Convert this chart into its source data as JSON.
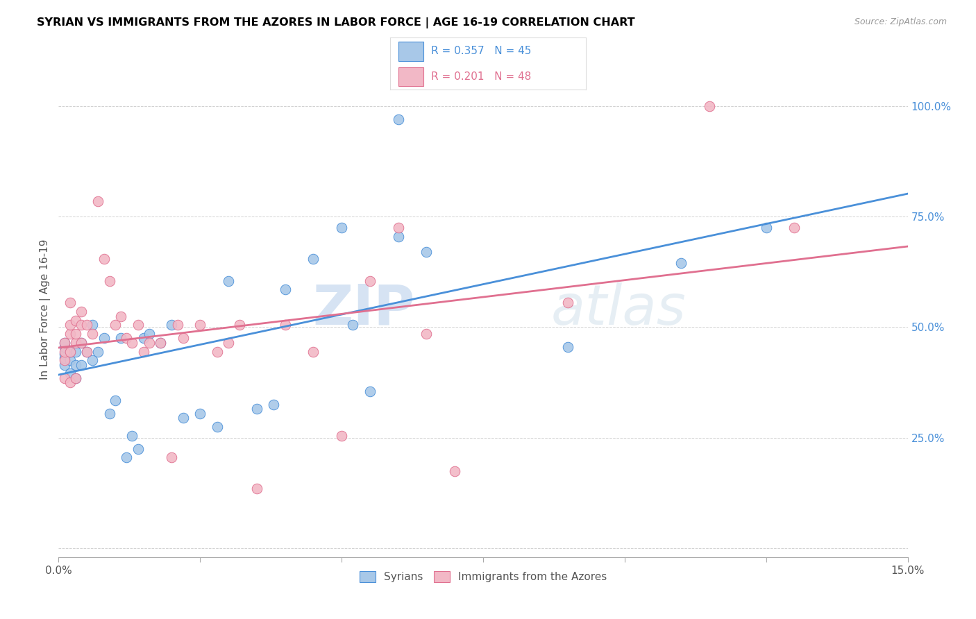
{
  "title": "SYRIAN VS IMMIGRANTS FROM THE AZORES IN LABOR FORCE | AGE 16-19 CORRELATION CHART",
  "source": "Source: ZipAtlas.com",
  "ylabel": "In Labor Force | Age 16-19",
  "xlim": [
    0.0,
    0.15
  ],
  "ylim": [
    -0.02,
    1.1
  ],
  "yticks": [
    0.0,
    0.25,
    0.5,
    0.75,
    1.0
  ],
  "ytick_labels": [
    "",
    "25.0%",
    "50.0%",
    "75.0%",
    "100.0%"
  ],
  "blue_R": 0.357,
  "blue_N": 45,
  "pink_R": 0.201,
  "pink_N": 48,
  "blue_color": "#A8C8E8",
  "pink_color": "#F2B8C6",
  "blue_line_color": "#4A90D9",
  "pink_line_color": "#E07090",
  "legend_label_blue": "Syrians",
  "legend_label_pink": "Immigrants from the Azores",
  "watermark_zip": "ZIP",
  "watermark_atlas": "atlas",
  "blue_scatter_x": [
    0.001,
    0.001,
    0.001,
    0.001,
    0.001,
    0.002,
    0.002,
    0.002,
    0.003,
    0.003,
    0.003,
    0.004,
    0.004,
    0.005,
    0.006,
    0.006,
    0.007,
    0.008,
    0.009,
    0.01,
    0.011,
    0.012,
    0.013,
    0.014,
    0.015,
    0.016,
    0.018,
    0.02,
    0.022,
    0.025,
    0.028,
    0.03,
    0.035,
    0.038,
    0.04,
    0.045,
    0.05,
    0.052,
    0.055,
    0.06,
    0.06,
    0.065,
    0.09,
    0.11,
    0.125
  ],
  "blue_scatter_y": [
    0.415,
    0.43,
    0.44,
    0.455,
    0.465,
    0.395,
    0.425,
    0.445,
    0.385,
    0.415,
    0.445,
    0.415,
    0.465,
    0.445,
    0.425,
    0.505,
    0.445,
    0.475,
    0.305,
    0.335,
    0.475,
    0.205,
    0.255,
    0.225,
    0.475,
    0.485,
    0.465,
    0.505,
    0.295,
    0.305,
    0.275,
    0.605,
    0.315,
    0.325,
    0.585,
    0.655,
    0.725,
    0.505,
    0.355,
    0.705,
    0.97,
    0.67,
    0.455,
    0.645,
    0.725
  ],
  "pink_scatter_x": [
    0.001,
    0.001,
    0.001,
    0.001,
    0.002,
    0.002,
    0.002,
    0.002,
    0.002,
    0.003,
    0.003,
    0.003,
    0.003,
    0.004,
    0.004,
    0.004,
    0.005,
    0.005,
    0.006,
    0.007,
    0.008,
    0.009,
    0.01,
    0.011,
    0.012,
    0.013,
    0.014,
    0.015,
    0.016,
    0.018,
    0.02,
    0.021,
    0.022,
    0.025,
    0.028,
    0.03,
    0.032,
    0.035,
    0.04,
    0.045,
    0.05,
    0.055,
    0.06,
    0.065,
    0.07,
    0.09,
    0.115,
    0.13
  ],
  "pink_scatter_y": [
    0.385,
    0.425,
    0.445,
    0.465,
    0.375,
    0.445,
    0.485,
    0.505,
    0.555,
    0.385,
    0.465,
    0.485,
    0.515,
    0.465,
    0.505,
    0.535,
    0.445,
    0.505,
    0.485,
    0.785,
    0.655,
    0.605,
    0.505,
    0.525,
    0.475,
    0.465,
    0.505,
    0.445,
    0.465,
    0.465,
    0.205,
    0.505,
    0.475,
    0.505,
    0.445,
    0.465,
    0.505,
    0.135,
    0.505,
    0.445,
    0.255,
    0.605,
    0.725,
    0.485,
    0.175,
    0.555,
    1.0,
    0.725
  ]
}
